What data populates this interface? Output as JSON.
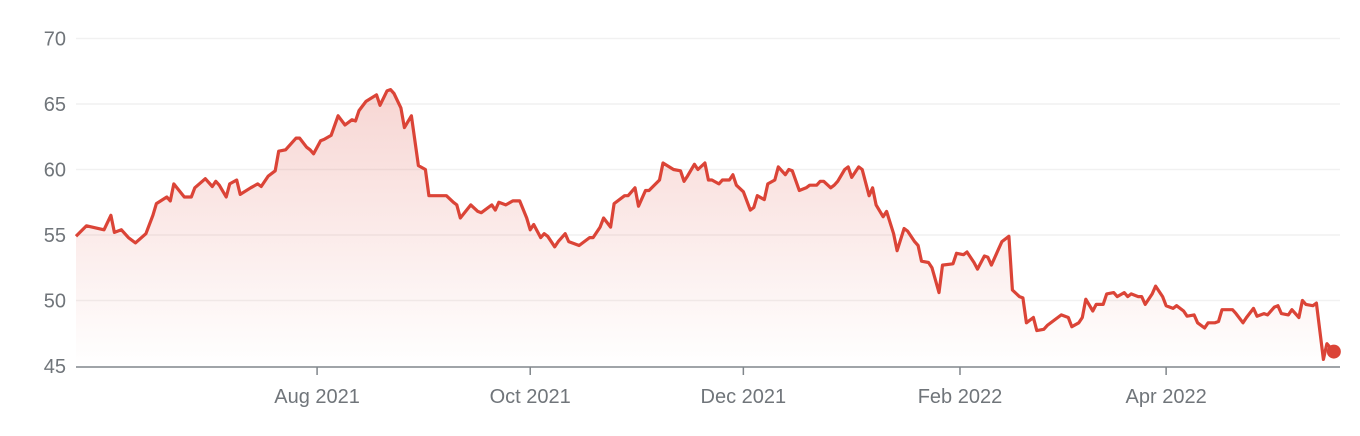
{
  "chart_data": {
    "type": "area",
    "title": "",
    "xlabel": "",
    "ylabel": "",
    "ylim": [
      45,
      70
    ],
    "yticks": [
      45,
      50,
      55,
      60,
      65,
      70
    ],
    "xticks": [
      {
        "date": "2021-08-01",
        "label": "Aug 2021"
      },
      {
        "date": "2021-10-01",
        "label": "Oct 2021"
      },
      {
        "date": "2021-12-01",
        "label": "Dec 2021"
      },
      {
        "date": "2022-02-01",
        "label": "Feb 2022"
      },
      {
        "date": "2022-04-01",
        "label": "Apr 2022"
      }
    ],
    "grid": true,
    "line_color": "#db4437",
    "fill_color": "#db4437",
    "series": [
      {
        "x": [
          "2021-05-24",
          "2021-05-27",
          "2021-06-01",
          "2021-06-03",
          "2021-06-04",
          "2021-06-06",
          "2021-06-08",
          "2021-06-10",
          "2021-06-13",
          "2021-06-15",
          "2021-06-16",
          "2021-06-19",
          "2021-06-20",
          "2021-06-21",
          "2021-06-24",
          "2021-06-26",
          "2021-06-27",
          "2021-06-30",
          "2021-07-02",
          "2021-07-03",
          "2021-07-04",
          "2021-07-06",
          "2021-07-07",
          "2021-07-09",
          "2021-07-10",
          "2021-07-13",
          "2021-07-15",
          "2021-07-16",
          "2021-07-18",
          "2021-07-20",
          "2021-07-21",
          "2021-07-23",
          "2021-07-26",
          "2021-07-27",
          "2021-07-29",
          "2021-07-30",
          "2021-07-31",
          "2021-08-02",
          "2021-08-03",
          "2021-08-05",
          "2021-08-07",
          "2021-08-09",
          "2021-08-11",
          "2021-08-12",
          "2021-08-13",
          "2021-08-15",
          "2021-08-18",
          "2021-08-19",
          "2021-08-21",
          "2021-08-22",
          "2021-08-23",
          "2021-08-25",
          "2021-08-26",
          "2021-08-28",
          "2021-08-30",
          "2021-09-01",
          "2021-09-02",
          "2021-09-04",
          "2021-09-07",
          "2021-09-09",
          "2021-09-10",
          "2021-09-11",
          "2021-09-14",
          "2021-09-16",
          "2021-09-17",
          "2021-09-20",
          "2021-09-21",
          "2021-09-22",
          "2021-09-24",
          "2021-09-26",
          "2021-09-28",
          "2021-09-30",
          "2021-10-01",
          "2021-10-02",
          "2021-10-04",
          "2021-10-05",
          "2021-10-06",
          "2021-10-08",
          "2021-10-09",
          "2021-10-11",
          "2021-10-12",
          "2021-10-15",
          "2021-10-16",
          "2021-10-18",
          "2021-10-19",
          "2021-10-21",
          "2021-10-22",
          "2021-10-24",
          "2021-10-25",
          "2021-10-28",
          "2021-10-29",
          "2021-10-31",
          "2021-11-01",
          "2021-11-03",
          "2021-11-04",
          "2021-11-07",
          "2021-11-08",
          "2021-11-11",
          "2021-11-13",
          "2021-11-14",
          "2021-11-15",
          "2021-11-17",
          "2021-11-18",
          "2021-11-20",
          "2021-11-21",
          "2021-11-22",
          "2021-11-24",
          "2021-11-25",
          "2021-11-27",
          "2021-11-28",
          "2021-11-29",
          "2021-12-01",
          "2021-12-03",
          "2021-12-04",
          "2021-12-05",
          "2021-12-07",
          "2021-12-08",
          "2021-12-10",
          "2021-12-11",
          "2021-12-13",
          "2021-12-14",
          "2021-12-15",
          "2021-12-17",
          "2021-12-19",
          "2021-12-20",
          "2021-12-22",
          "2021-12-23",
          "2021-12-24",
          "2021-12-26",
          "2021-12-27",
          "2021-12-28",
          "2021-12-30",
          "2021-12-31",
          "2022-01-01",
          "2022-01-03",
          "2022-01-04",
          "2022-01-06",
          "2022-01-07",
          "2022-01-08",
          "2022-01-10",
          "2022-01-11",
          "2022-01-13",
          "2022-01-14",
          "2022-01-16",
          "2022-01-17",
          "2022-01-19",
          "2022-01-20",
          "2022-01-21",
          "2022-01-23",
          "2022-01-24",
          "2022-01-26",
          "2022-01-27",
          "2022-01-30",
          "2022-01-31",
          "2022-02-02",
          "2022-02-03",
          "2022-02-05",
          "2022-02-06",
          "2022-02-08",
          "2022-02-09",
          "2022-02-10",
          "2022-02-12",
          "2022-02-13",
          "2022-02-15",
          "2022-02-16",
          "2022-02-18",
          "2022-02-19",
          "2022-02-20",
          "2022-02-22",
          "2022-02-23",
          "2022-02-25",
          "2022-02-26",
          "2022-02-28",
          "2022-03-01",
          "2022-03-02",
          "2022-03-04",
          "2022-03-05",
          "2022-03-07",
          "2022-03-08",
          "2022-03-09",
          "2022-03-11",
          "2022-03-12",
          "2022-03-14",
          "2022-03-15",
          "2022-03-17",
          "2022-03-18",
          "2022-03-20",
          "2022-03-21",
          "2022-03-22",
          "2022-03-24",
          "2022-03-25",
          "2022-03-26",
          "2022-03-28",
          "2022-03-29",
          "2022-03-31",
          "2022-04-01",
          "2022-04-03",
          "2022-04-04",
          "2022-04-06",
          "2022-04-07",
          "2022-04-09",
          "2022-04-10",
          "2022-04-12",
          "2022-04-13",
          "2022-04-15",
          "2022-04-16",
          "2022-04-17",
          "2022-04-20",
          "2022-04-21",
          "2022-04-23",
          "2022-04-24",
          "2022-04-26",
          "2022-04-27",
          "2022-04-29",
          "2022-04-30",
          "2022-05-02",
          "2022-05-03",
          "2022-05-04",
          "2022-05-06",
          "2022-05-07",
          "2022-05-09",
          "2022-05-10",
          "2022-05-11",
          "2022-05-13",
          "2022-05-14",
          "2022-05-16",
          "2022-05-17",
          "2022-05-19"
        ],
        "y": [
          54.9,
          55.7,
          55.4,
          56.5,
          55.2,
          55.4,
          54.8,
          54.4,
          55.1,
          56.5,
          57.4,
          57.9,
          57.6,
          58.9,
          57.9,
          57.9,
          58.6,
          59.3,
          58.7,
          59.1,
          58.8,
          57.9,
          58.9,
          59.2,
          58.1,
          58.6,
          58.9,
          58.7,
          59.5,
          59.9,
          61.4,
          61.5,
          62.4,
          62.4,
          61.7,
          61.5,
          61.2,
          62.2,
          62.3,
          62.6,
          64.1,
          63.4,
          63.8,
          63.7,
          64.5,
          65.2,
          65.7,
          64.9,
          66.0,
          66.1,
          65.8,
          64.7,
          63.2,
          64.1,
          60.3,
          60.0,
          58.0,
          58.0,
          58.0,
          57.5,
          57.3,
          56.3,
          57.3,
          56.8,
          56.7,
          57.3,
          56.9,
          57.5,
          57.3,
          57.6,
          57.6,
          56.3,
          55.4,
          55.8,
          54.8,
          55.1,
          54.9,
          54.1,
          54.5,
          55.1,
          54.5,
          54.2,
          54.4,
          54.8,
          54.8,
          55.6,
          56.3,
          55.6,
          57.4,
          58.0,
          58.0,
          58.6,
          57.2,
          58.4,
          58.4,
          59.2,
          60.5,
          60.0,
          59.9,
          59.1,
          59.5,
          60.4,
          60.0,
          60.5,
          59.2,
          59.2,
          58.9,
          59.2,
          59.2,
          59.6,
          58.8,
          58.3,
          56.9,
          57.1,
          58.0,
          57.7,
          58.9,
          59.2,
          60.2,
          59.6,
          60.0,
          59.9,
          58.4,
          58.6,
          58.8,
          58.8,
          59.1,
          59.1,
          58.6,
          58.8,
          59.1,
          60.0,
          60.2,
          59.4,
          60.2,
          60.0,
          58.0,
          58.6,
          57.3,
          56.4,
          56.8,
          55.1,
          53.8,
          55.5,
          55.3,
          54.5,
          54.2,
          53.0,
          52.9,
          52.5,
          50.6,
          52.7,
          52.8,
          53.6,
          53.5,
          53.7,
          52.9,
          52.4,
          53.4,
          53.3,
          52.7,
          53.9,
          54.5,
          54.9,
          50.8,
          50.3,
          50.2,
          48.3,
          48.7,
          47.7,
          47.8,
          48.1,
          48.5,
          48.7,
          48.9,
          48.7,
          48.0,
          48.3,
          48.7,
          50.1,
          49.2,
          49.7,
          49.7,
          50.5,
          50.6,
          50.3,
          50.6,
          50.3,
          50.5,
          50.3,
          50.3,
          49.7,
          50.5,
          51.1,
          50.3,
          49.6,
          49.4,
          49.6,
          49.2,
          48.8,
          48.9,
          48.3,
          47.9,
          48.3,
          48.3,
          48.4,
          49.3,
          49.3,
          49.0,
          48.3,
          48.7,
          49.4,
          48.8,
          49.0,
          48.9,
          49.5,
          49.6,
          49.0,
          48.9,
          49.3,
          48.7,
          50.0,
          49.7,
          49.6,
          49.8,
          45.5,
          46.7,
          46.1
        ]
      }
    ]
  }
}
